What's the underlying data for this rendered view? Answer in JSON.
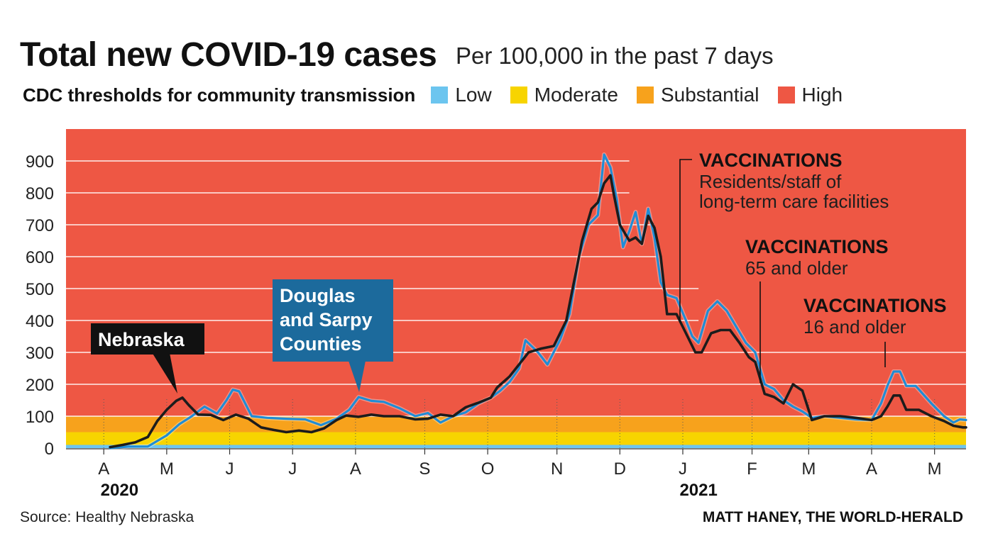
{
  "header": {
    "title": "Total new COVID-19 cases",
    "subtitle": "Per 100,000 in the past 7 days"
  },
  "legend": {
    "title": "CDC thresholds for community transmission",
    "items": [
      {
        "label": "Low",
        "color": "#6cc5ef"
      },
      {
        "label": "Moderate",
        "color": "#f7d400"
      },
      {
        "label": "Substantial",
        "color": "#f7a21c"
      },
      {
        "label": "High",
        "color": "#ee5744"
      }
    ]
  },
  "footer": {
    "source": "Source:  Healthy Nebraska",
    "credit": "MATT HANEY, THE WORLD-HERALD"
  },
  "chart_data": {
    "type": "line",
    "title": "Total new COVID-19 cases",
    "ylabel": "Per 100,000 in the past 7 days",
    "ylim": [
      0,
      1000
    ],
    "xlim": [
      0,
      14.3
    ],
    "yticks": [
      0,
      100,
      200,
      300,
      400,
      500,
      600,
      700,
      800,
      900
    ],
    "xticks": [
      {
        "x": 0.6,
        "label": "A"
      },
      {
        "x": 1.6,
        "label": "M"
      },
      {
        "x": 2.6,
        "label": "J"
      },
      {
        "x": 3.6,
        "label": "J"
      },
      {
        "x": 4.6,
        "label": "A"
      },
      {
        "x": 5.7,
        "label": "S"
      },
      {
        "x": 6.7,
        "label": "O"
      },
      {
        "x": 7.8,
        "label": "N"
      },
      {
        "x": 8.8,
        "label": "D"
      },
      {
        "x": 9.8,
        "label": "J"
      },
      {
        "x": 10.9,
        "label": "F"
      },
      {
        "x": 11.8,
        "label": "M"
      },
      {
        "x": 12.8,
        "label": "A"
      },
      {
        "x": 13.8,
        "label": "M"
      }
    ],
    "year_labels": [
      {
        "x": 0.85,
        "label": "2020"
      },
      {
        "x": 10.05,
        "label": "2021"
      }
    ],
    "bands": [
      {
        "name": "Low",
        "from": 0,
        "to": 10,
        "color": "#6cc5ef"
      },
      {
        "name": "Moderate",
        "from": 10,
        "to": 50,
        "color": "#f7d400"
      },
      {
        "name": "Substantial",
        "from": 50,
        "to": 100,
        "color": "#f7a21c"
      },
      {
        "name": "High",
        "from": 100,
        "to": 1000,
        "color": "#ee5744"
      }
    ],
    "series": [
      {
        "name": "Nebraska",
        "color": "#1c1c1c",
        "points": [
          [
            0.7,
            3
          ],
          [
            0.9,
            10
          ],
          [
            1.1,
            18
          ],
          [
            1.3,
            35
          ],
          [
            1.45,
            85
          ],
          [
            1.6,
            120
          ],
          [
            1.75,
            148
          ],
          [
            1.85,
            158
          ],
          [
            1.95,
            135
          ],
          [
            2.1,
            105
          ],
          [
            2.3,
            104
          ],
          [
            2.5,
            88
          ],
          [
            2.7,
            105
          ],
          [
            2.9,
            92
          ],
          [
            3.1,
            65
          ],
          [
            3.3,
            57
          ],
          [
            3.5,
            50
          ],
          [
            3.7,
            55
          ],
          [
            3.9,
            50
          ],
          [
            4.1,
            62
          ],
          [
            4.3,
            88
          ],
          [
            4.45,
            102
          ],
          [
            4.65,
            98
          ],
          [
            4.85,
            105
          ],
          [
            5.05,
            100
          ],
          [
            5.3,
            100
          ],
          [
            5.55,
            90
          ],
          [
            5.75,
            92
          ],
          [
            5.95,
            105
          ],
          [
            6.15,
            100
          ],
          [
            6.35,
            128
          ],
          [
            6.55,
            142
          ],
          [
            6.75,
            158
          ],
          [
            6.85,
            190
          ],
          [
            7.05,
            225
          ],
          [
            7.35,
            300
          ],
          [
            7.55,
            312
          ],
          [
            7.75,
            320
          ],
          [
            7.95,
            400
          ],
          [
            8.05,
            500
          ],
          [
            8.2,
            650
          ],
          [
            8.35,
            750
          ],
          [
            8.45,
            770
          ],
          [
            8.55,
            830
          ],
          [
            8.65,
            855
          ],
          [
            8.7,
            800
          ],
          [
            8.8,
            700
          ],
          [
            8.95,
            650
          ],
          [
            9.05,
            660
          ],
          [
            9.15,
            640
          ],
          [
            9.25,
            728
          ],
          [
            9.35,
            690
          ],
          [
            9.45,
            600
          ],
          [
            9.55,
            420
          ],
          [
            9.7,
            420
          ],
          [
            9.85,
            360
          ],
          [
            10.0,
            300
          ],
          [
            10.1,
            300
          ],
          [
            10.25,
            360
          ],
          [
            10.4,
            370
          ],
          [
            10.55,
            370
          ],
          [
            10.7,
            330
          ],
          [
            10.85,
            285
          ],
          [
            10.95,
            270
          ],
          [
            11.1,
            170
          ],
          [
            11.25,
            160
          ],
          [
            11.4,
            140
          ],
          [
            11.55,
            200
          ],
          [
            11.7,
            180
          ],
          [
            11.85,
            88
          ],
          [
            12.05,
            100
          ],
          [
            12.3,
            100
          ],
          [
            12.55,
            95
          ],
          [
            12.8,
            88
          ],
          [
            12.95,
            100
          ],
          [
            13.05,
            130
          ],
          [
            13.15,
            165
          ],
          [
            13.25,
            165
          ],
          [
            13.35,
            120
          ],
          [
            13.55,
            120
          ],
          [
            13.75,
            100
          ],
          [
            13.95,
            85
          ],
          [
            14.1,
            70
          ],
          [
            14.25,
            65
          ],
          [
            14.3,
            65
          ]
        ]
      },
      {
        "name": "Douglas and Sarpy Counties",
        "color": "#1f8dd6",
        "points": [
          [
            0.7,
            0
          ],
          [
            1.0,
            5
          ],
          [
            1.3,
            5
          ],
          [
            1.6,
            40
          ],
          [
            1.8,
            75
          ],
          [
            2.0,
            100
          ],
          [
            2.2,
            130
          ],
          [
            2.4,
            108
          ],
          [
            2.55,
            150
          ],
          [
            2.65,
            183
          ],
          [
            2.75,
            178
          ],
          [
            2.95,
            100
          ],
          [
            3.2,
            95
          ],
          [
            3.5,
            92
          ],
          [
            3.8,
            90
          ],
          [
            4.05,
            72
          ],
          [
            4.3,
            92
          ],
          [
            4.5,
            120
          ],
          [
            4.65,
            160
          ],
          [
            4.85,
            148
          ],
          [
            5.05,
            145
          ],
          [
            5.3,
            125
          ],
          [
            5.55,
            100
          ],
          [
            5.75,
            110
          ],
          [
            5.95,
            80
          ],
          [
            6.15,
            100
          ],
          [
            6.35,
            112
          ],
          [
            6.55,
            140
          ],
          [
            6.75,
            158
          ],
          [
            6.9,
            180
          ],
          [
            7.05,
            208
          ],
          [
            7.2,
            250
          ],
          [
            7.3,
            338
          ],
          [
            7.5,
            300
          ],
          [
            7.65,
            262
          ],
          [
            7.85,
            340
          ],
          [
            8.0,
            420
          ],
          [
            8.15,
            600
          ],
          [
            8.3,
            700
          ],
          [
            8.45,
            730
          ],
          [
            8.55,
            920
          ],
          [
            8.65,
            880
          ],
          [
            8.75,
            780
          ],
          [
            8.85,
            630
          ],
          [
            8.95,
            680
          ],
          [
            9.05,
            740
          ],
          [
            9.15,
            640
          ],
          [
            9.25,
            750
          ],
          [
            9.35,
            660
          ],
          [
            9.45,
            520
          ],
          [
            9.55,
            480
          ],
          [
            9.7,
            470
          ],
          [
            9.85,
            400
          ],
          [
            9.95,
            350
          ],
          [
            10.05,
            330
          ],
          [
            10.2,
            430
          ],
          [
            10.35,
            460
          ],
          [
            10.5,
            430
          ],
          [
            10.65,
            380
          ],
          [
            10.8,
            330
          ],
          [
            10.95,
            300
          ],
          [
            11.1,
            200
          ],
          [
            11.25,
            185
          ],
          [
            11.4,
            150
          ],
          [
            11.55,
            130
          ],
          [
            11.7,
            115
          ],
          [
            11.85,
            95
          ],
          [
            12.05,
            100
          ],
          [
            12.3,
            95
          ],
          [
            12.55,
            90
          ],
          [
            12.8,
            88
          ],
          [
            12.95,
            140
          ],
          [
            13.05,
            195
          ],
          [
            13.15,
            240
          ],
          [
            13.25,
            240
          ],
          [
            13.35,
            195
          ],
          [
            13.5,
            195
          ],
          [
            13.75,
            140
          ],
          [
            13.95,
            100
          ],
          [
            14.1,
            80
          ],
          [
            14.2,
            90
          ],
          [
            14.3,
            88
          ]
        ]
      }
    ],
    "callouts": [
      {
        "text": [
          "Nebraska"
        ],
        "style": "dark",
        "x": 1.9,
        "y": 152
      },
      {
        "text": [
          "Douglas",
          "and Sarpy",
          "Counties"
        ],
        "style": "blue",
        "x": 4.65,
        "y": 160
      }
    ],
    "annotations": [
      {
        "title": "VACCINATIONS",
        "lines": [
          "Residents/staff of",
          "long-term care facilities"
        ],
        "x": 10.05,
        "y": 322
      },
      {
        "title": "VACCINATIONS",
        "lines": [
          "65 and older"
        ],
        "x": 11.25,
        "y": 168
      },
      {
        "title": "VACCINATIONS",
        "lines": [
          "16 and older"
        ],
        "x": 13.25,
        "y": 238
      }
    ]
  }
}
